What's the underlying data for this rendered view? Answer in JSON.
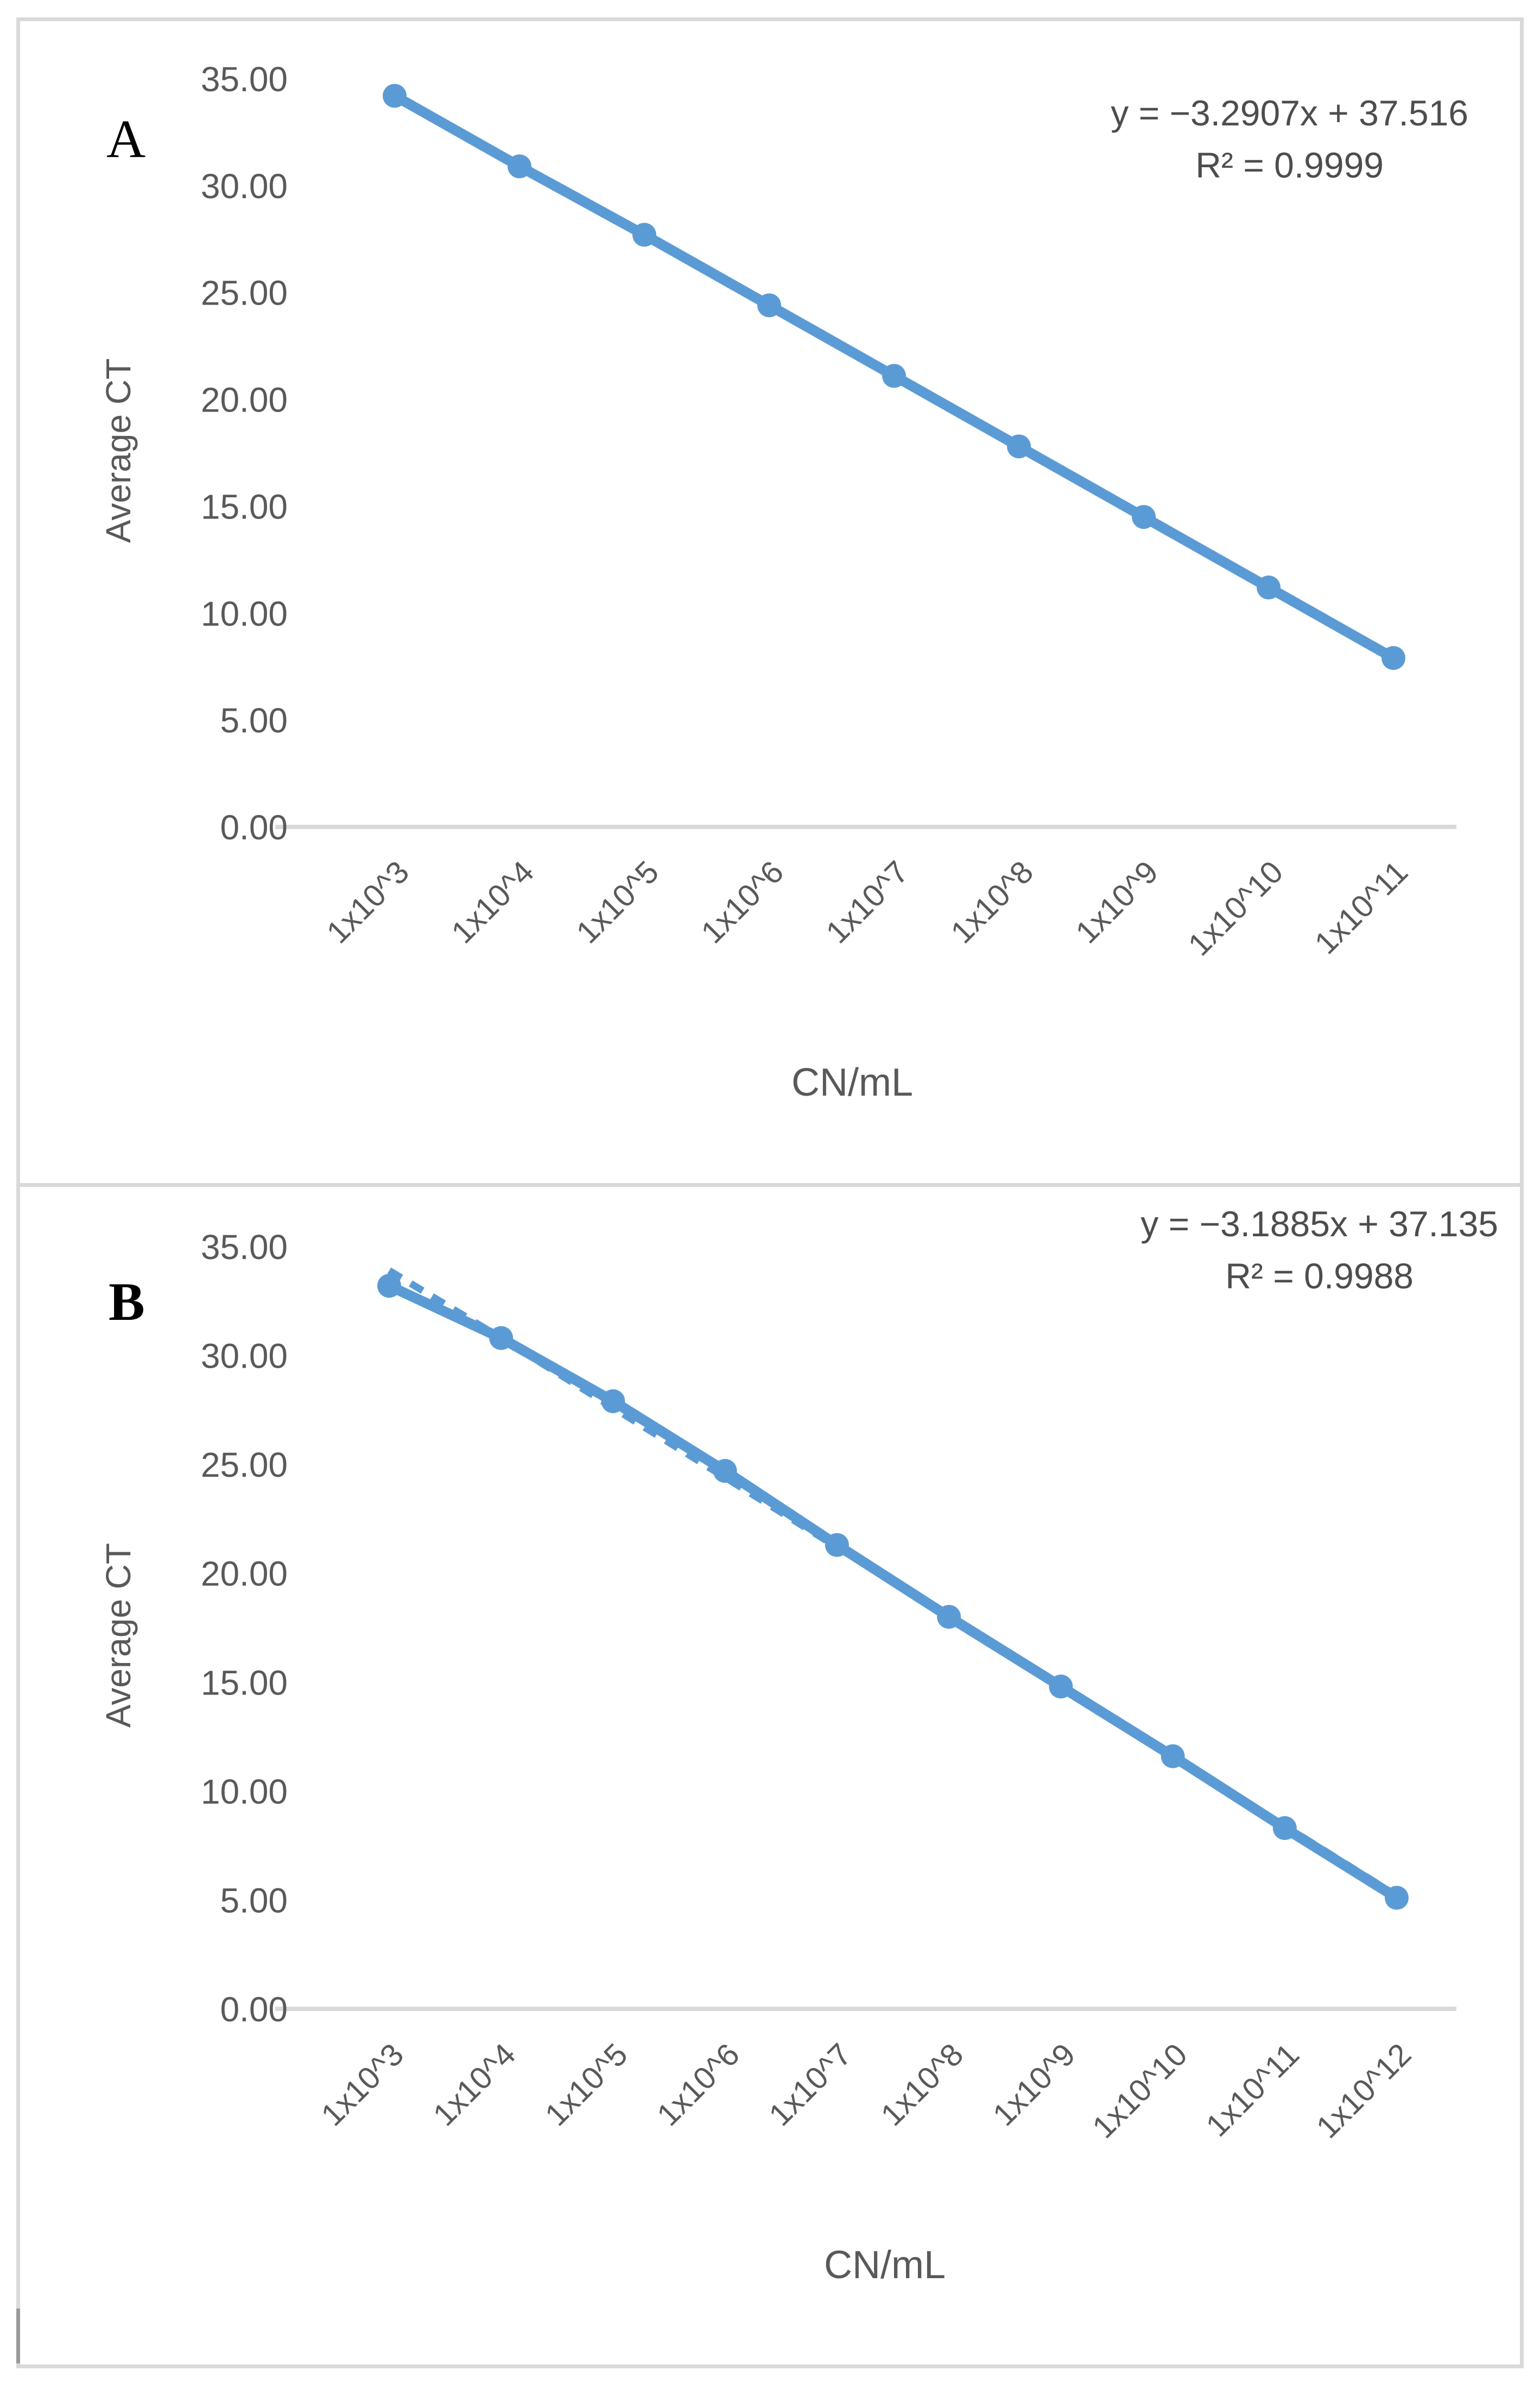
{
  "figure": {
    "panel_count": 2,
    "frame_color": "#d9d9d9"
  },
  "colors": {
    "series_line": "#5b9bd5",
    "axis_line": "#d9d9d9",
    "tick_text": "#595959",
    "equation_text": "#4d4d4d",
    "panel_label_text": "#000000"
  },
  "chart_data": [
    {
      "type": "line",
      "panel_label": "A",
      "equation": "y = −3.2907x + 37.516",
      "r_squared": "R² = 0.9999",
      "categories": [
        "1x10^3",
        "1x10^4",
        "1x10^5",
        "1x10^6",
        "1x10^7",
        "1x10^8",
        "1x10^9",
        "1x10^10",
        "1x10^11"
      ],
      "values": [
        34.2,
        30.9,
        27.7,
        24.4,
        21.1,
        17.8,
        14.5,
        11.2,
        7.9
      ],
      "xlabel": "CN/mL",
      "ylabel": "Average CT",
      "ylim": [
        0,
        35
      ],
      "ytick_labels": [
        "35.00",
        "30.00",
        "25.00",
        "20.00",
        "15.00",
        "10.00",
        "5.00",
        "0.00"
      ],
      "grid": "off",
      "legend": "none",
      "marker": "circle",
      "line_color": "#5b9bd5",
      "trendline_dashed": false
    },
    {
      "type": "line",
      "panel_label": "B",
      "equation": "y = −3.1885x + 37.135",
      "r_squared": "R² = 0.9988",
      "categories": [
        "1x10^3",
        "1x10^4",
        "1x10^5",
        "1x10^6",
        "1x10^7",
        "1x10^8",
        "1x10^9",
        "1x10^10",
        "1x10^11",
        "1x10^12"
      ],
      "values": [
        33.2,
        30.8,
        27.9,
        24.7,
        21.3,
        18.0,
        14.8,
        11.6,
        8.3,
        5.1
      ],
      "xlabel": "CN/mL",
      "ylabel": "Average CT",
      "ylim": [
        0,
        35
      ],
      "ytick_labels": [
        "35.00",
        "30.00",
        "25.00",
        "20.00",
        "15.00",
        "10.00",
        "5.00",
        "0.00"
      ],
      "grid": "off",
      "legend": "none",
      "marker": "circle",
      "line_color": "#5b9bd5",
      "trendline_dashed": true,
      "trend_values": [
        33.9,
        30.8,
        27.6,
        24.4,
        21.2,
        18.0,
        14.8,
        11.6,
        8.4,
        5.2
      ]
    }
  ]
}
